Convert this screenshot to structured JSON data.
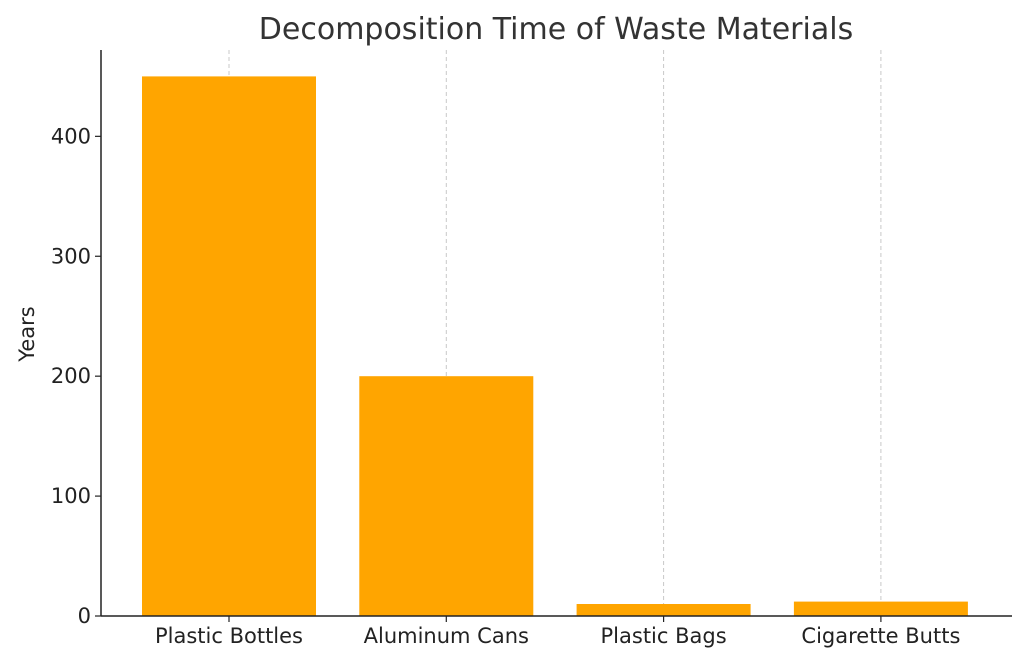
{
  "chart_data": {
    "type": "bar",
    "title": "Decomposition Time of Waste Materials",
    "xlabel": "",
    "ylabel": "Years",
    "categories": [
      "Plastic Bottles",
      "Aluminum Cans",
      "Plastic Bags",
      "Cigarette Butts"
    ],
    "values": [
      450,
      200,
      10,
      12
    ],
    "ylim": [
      0,
      472
    ],
    "yticks": [
      0,
      100,
      200,
      300,
      400
    ],
    "grid": "x-dashed",
    "legend": "none",
    "bar_color": "#FFA500",
    "grid_color": "#c8c8c8",
    "axis_color": "#222222"
  }
}
